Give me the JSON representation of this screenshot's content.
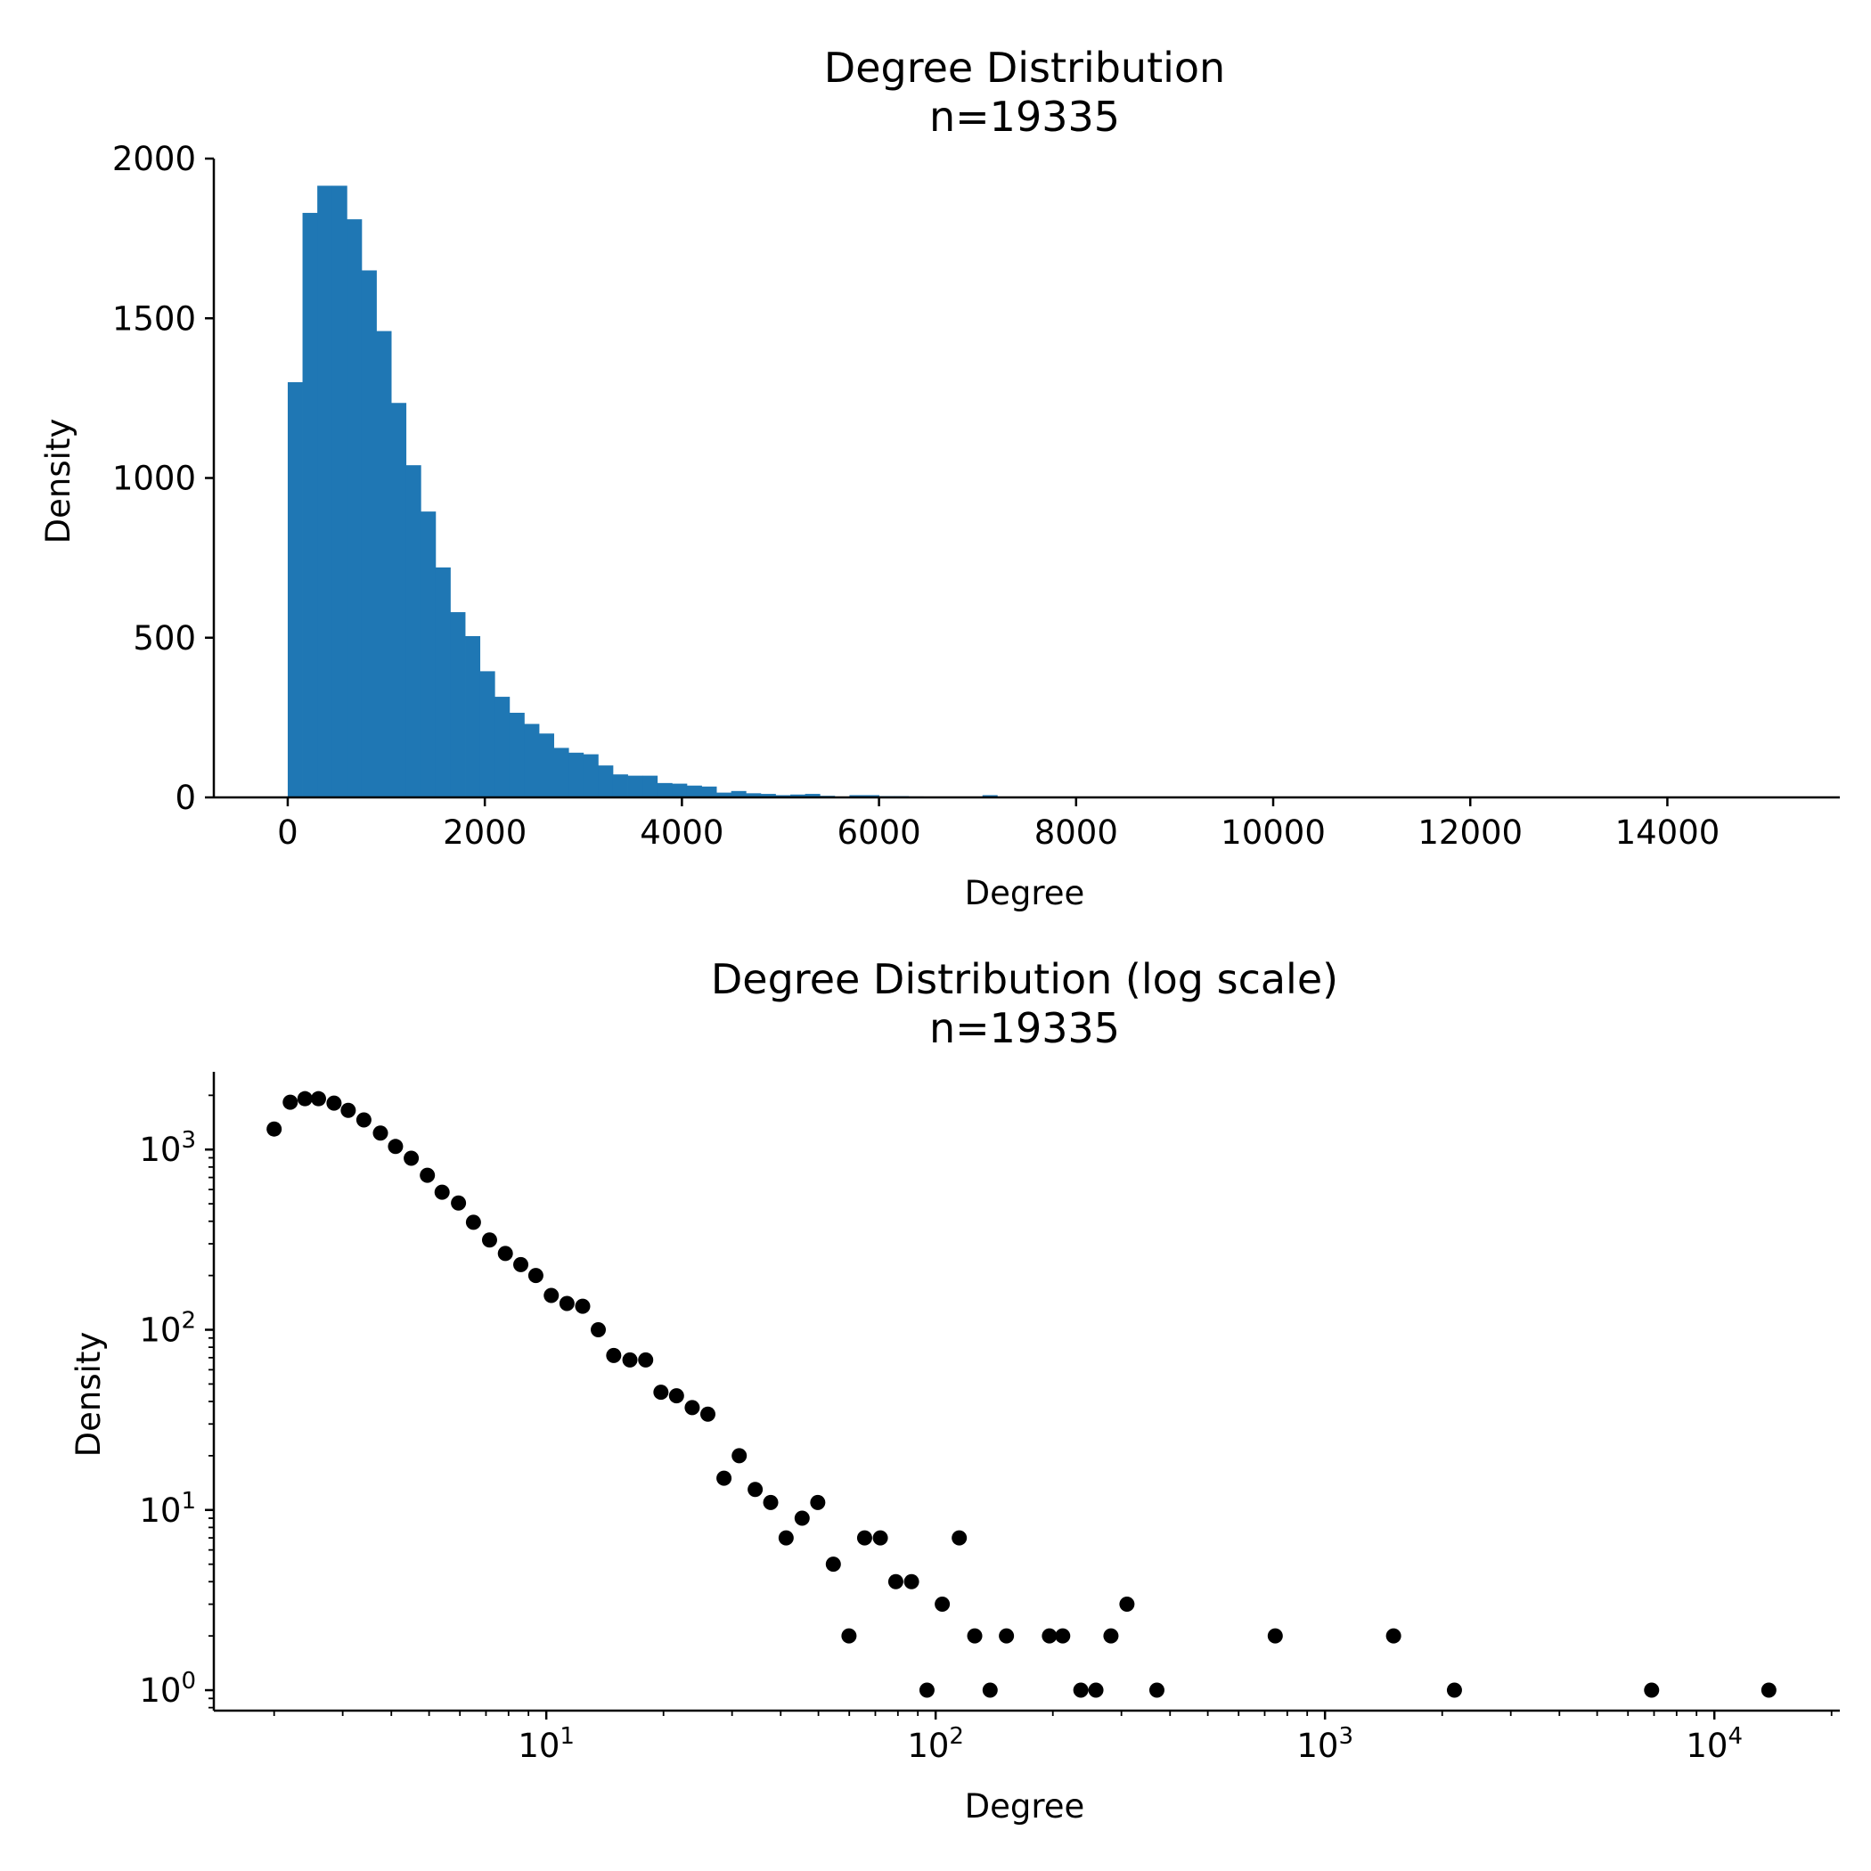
{
  "chart_data": [
    {
      "type": "bar",
      "title": "Degree Distribution",
      "subtitle": "n=19335",
      "xlabel": "Degree",
      "ylabel": "Density",
      "xlim": [
        -750,
        15750
      ],
      "ylim": [
        0,
        2000
      ],
      "xticks": [
        "0",
        "2000",
        "4000",
        "6000",
        "8000",
        "10000",
        "12000",
        "14000"
      ],
      "yticks": [
        "0",
        "500",
        "1000",
        "1500",
        "2000"
      ],
      "bin_width": 150,
      "bin_start": 0,
      "values": [
        1300,
        1830,
        1915,
        1915,
        1810,
        1650,
        1460,
        1235,
        1040,
        895,
        720,
        580,
        505,
        395,
        315,
        265,
        230,
        200,
        155,
        140,
        135,
        100,
        72,
        68,
        68,
        45,
        43,
        37,
        34,
        15,
        20,
        13,
        11,
        7,
        9,
        11,
        5,
        2,
        7,
        7,
        4,
        4,
        3,
        0,
        0,
        0,
        0,
        7
      ],
      "grid": false,
      "color": "#1f77b4"
    },
    {
      "type": "scatter",
      "title": "Degree Distribution (log scale)",
      "subtitle": "n=19335",
      "xlabel": "Degree",
      "ylabel": "Density",
      "xscale": "log",
      "yscale": "log",
      "xlim": [
        1.4,
        21000
      ],
      "ylim": [
        0.77,
        2700
      ],
      "xticks": [
        {
          "base": "10",
          "exp": "1"
        },
        {
          "base": "10",
          "exp": "2"
        },
        {
          "base": "10",
          "exp": "3"
        },
        {
          "base": "10",
          "exp": "4"
        }
      ],
      "yticks": [
        {
          "base": "10",
          "exp": "0"
        },
        {
          "base": "10",
          "exp": "1"
        },
        {
          "base": "10",
          "exp": "2"
        },
        {
          "base": "10",
          "exp": "3"
        }
      ],
      "points": [
        [
          2,
          1300
        ],
        [
          2.2,
          1830
        ],
        [
          2.4,
          1915
        ],
        [
          2.6,
          1915
        ],
        [
          2.85,
          1810
        ],
        [
          3.1,
          1650
        ],
        [
          3.4,
          1460
        ],
        [
          3.75,
          1235
        ],
        [
          4.1,
          1040
        ],
        [
          4.5,
          895
        ],
        [
          4.95,
          720
        ],
        [
          5.4,
          580
        ],
        [
          5.95,
          505
        ],
        [
          6.5,
          395
        ],
        [
          7.15,
          315
        ],
        [
          7.85,
          265
        ],
        [
          8.6,
          230
        ],
        [
          9.4,
          200
        ],
        [
          10.3,
          155
        ],
        [
          11.3,
          140
        ],
        [
          12.4,
          135
        ],
        [
          13.6,
          100
        ],
        [
          14.9,
          72
        ],
        [
          16.4,
          68
        ],
        [
          18,
          68
        ],
        [
          19.7,
          45
        ],
        [
          21.6,
          43
        ],
        [
          23.7,
          37
        ],
        [
          26,
          34
        ],
        [
          28.6,
          15
        ],
        [
          31.3,
          20
        ],
        [
          34.4,
          13
        ],
        [
          37.7,
          11
        ],
        [
          41.3,
          7
        ],
        [
          45.4,
          9
        ],
        [
          49.8,
          11
        ],
        [
          54.6,
          5
        ],
        [
          59.9,
          2
        ],
        [
          65.7,
          7
        ],
        [
          72.1,
          7
        ],
        [
          79,
          4
        ],
        [
          86.7,
          4
        ],
        [
          95,
          1
        ],
        [
          104,
          3
        ],
        [
          115,
          7
        ],
        [
          126,
          2
        ],
        [
          138,
          1
        ],
        [
          152,
          2
        ],
        [
          196,
          2
        ],
        [
          212,
          2
        ],
        [
          236,
          1
        ],
        [
          258,
          1
        ],
        [
          282,
          2
        ],
        [
          310,
          3
        ],
        [
          370,
          1
        ],
        [
          745,
          2
        ],
        [
          1500,
          2
        ],
        [
          2150,
          1
        ],
        [
          6900,
          1
        ],
        [
          13800,
          1
        ]
      ],
      "grid": false,
      "color": "#000000"
    }
  ]
}
